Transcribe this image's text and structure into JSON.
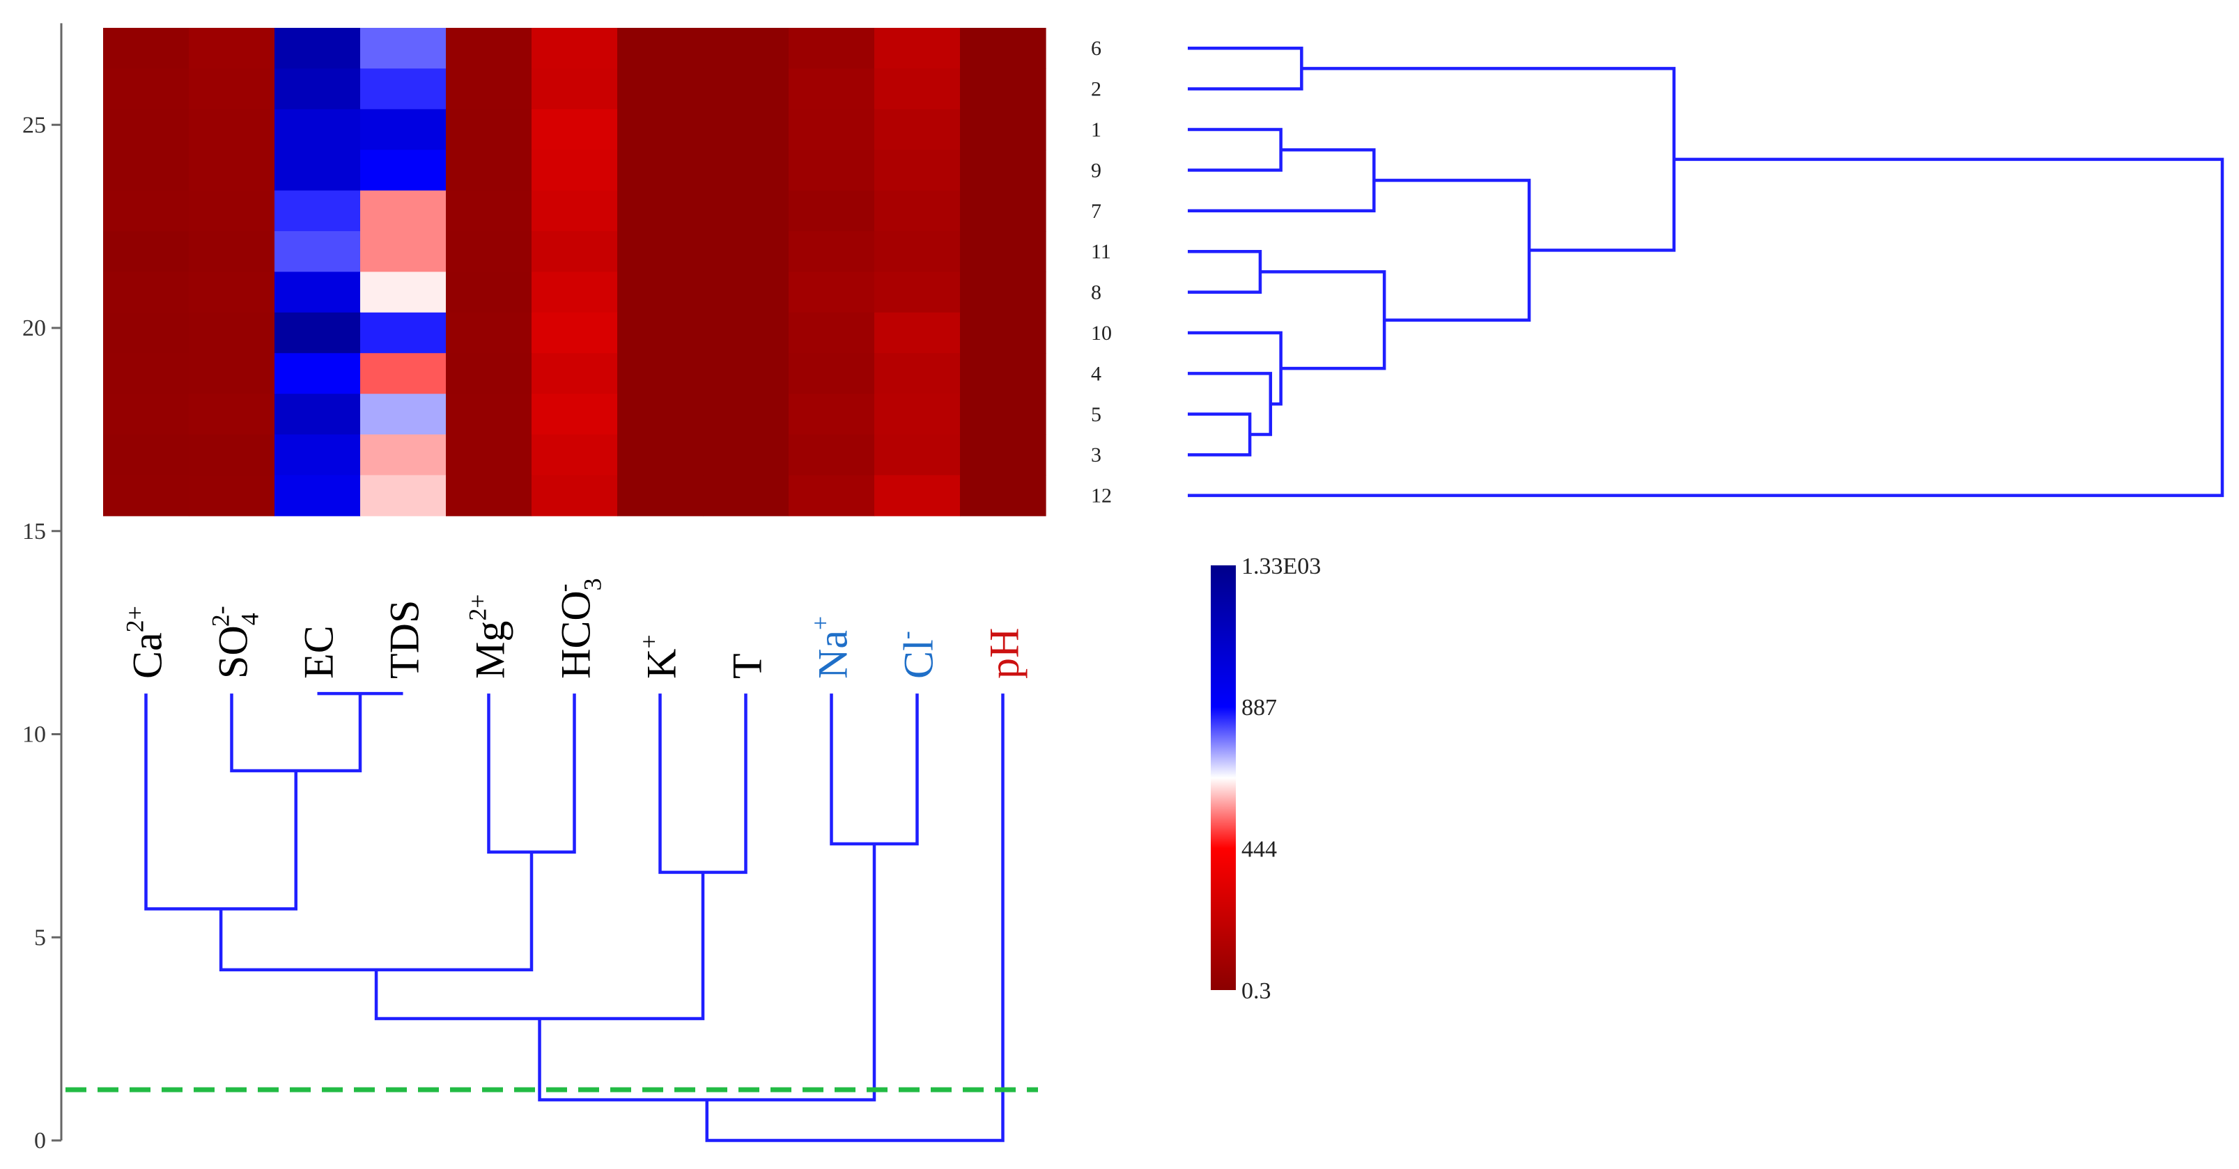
{
  "chart_data": {
    "type": "heatmap",
    "title": "",
    "xlabel": "",
    "ylabel": "",
    "heatmap": {
      "columns": [
        {
          "id": "Ca",
          "base": "Ca",
          "sup": "2+",
          "sub": "",
          "color": "#000000"
        },
        {
          "id": "SO4",
          "base": "SO",
          "sub": "4",
          "sup": "2-",
          "color": "#000000"
        },
        {
          "id": "EC",
          "base": "EC",
          "sub": "",
          "sup": "",
          "color": "#000000"
        },
        {
          "id": "TDS",
          "base": "TDS",
          "sub": "",
          "sup": "",
          "color": "#000000"
        },
        {
          "id": "Mg",
          "base": "Mg",
          "sup": "2+",
          "sub": "",
          "color": "#000000"
        },
        {
          "id": "HCO3",
          "base": "HCO",
          "sub": "3",
          "sup": "-",
          "color": "#000000"
        },
        {
          "id": "K",
          "base": "K",
          "sup": "+",
          "sub": "",
          "color": "#000000"
        },
        {
          "id": "T",
          "base": "T",
          "sub": "",
          "sup": "",
          "color": "#000000"
        },
        {
          "id": "Na",
          "base": "Na",
          "sup": "+",
          "sub": "",
          "color": "#1f6fc8"
        },
        {
          "id": "Cl",
          "base": "Cl",
          "sup": "-",
          "sub": "",
          "color": "#1f6fc8"
        },
        {
          "id": "pH",
          "base": "pH",
          "sub": "",
          "sup": "",
          "color": "#cc1111"
        }
      ],
      "rows": [
        "6",
        "2",
        "1",
        "9",
        "7",
        "11",
        "8",
        "10",
        "4",
        "5",
        "3",
        "12"
      ],
      "values": [
        [
          30,
          70,
          1200,
          800,
          40,
          250,
          10,
          10,
          60,
          200,
          5
        ],
        [
          40,
          60,
          1150,
          850,
          40,
          240,
          10,
          10,
          80,
          180,
          5
        ],
        [
          35,
          55,
          1050,
          1000,
          35,
          290,
          10,
          10,
          75,
          150,
          5
        ],
        [
          30,
          50,
          1050,
          900,
          35,
          280,
          10,
          10,
          70,
          130,
          5
        ],
        [
          40,
          45,
          850,
          560,
          40,
          260,
          10,
          10,
          50,
          110,
          5
        ],
        [
          25,
          40,
          820,
          560,
          35,
          230,
          10,
          10,
          70,
          100,
          5
        ],
        [
          35,
          45,
          1000,
          650,
          30,
          270,
          10,
          10,
          90,
          120,
          5
        ],
        [
          30,
          40,
          1250,
          860,
          40,
          300,
          10,
          10,
          70,
          190,
          5
        ],
        [
          35,
          40,
          900,
          520,
          35,
          260,
          10,
          10,
          60,
          160,
          5
        ],
        [
          40,
          50,
          1100,
          740,
          40,
          290,
          10,
          10,
          80,
          170,
          5
        ],
        [
          30,
          35,
          1000,
          590,
          40,
          260,
          10,
          10,
          65,
          160,
          5
        ],
        [
          35,
          40,
          960,
          620,
          40,
          240,
          10,
          10,
          90,
          230,
          5
        ]
      ],
      "colorbar": {
        "min": 0.3,
        "max": 1330,
        "tick_values": [
          1330,
          887,
          444,
          0.3
        ],
        "tick_labels": [
          "1.33E03",
          "887",
          "444",
          "0.3"
        ],
        "stops": [
          {
            "value": 0.3,
            "color": "#8b0000"
          },
          {
            "value": 444,
            "color": "#ff0000"
          },
          {
            "value": 665,
            "color": "#ffffff"
          },
          {
            "value": 887,
            "color": "#0000ff"
          },
          {
            "value": 1330,
            "color": "#00008b"
          }
        ]
      }
    },
    "variable_dendrogram": {
      "axis": {
        "ylim": [
          0,
          27.5
        ],
        "ticks": [
          0,
          5,
          10,
          15,
          20,
          25
        ]
      },
      "leaf_top": 11,
      "merges": [
        {
          "a": "EC",
          "b": "TDS",
          "h": 11
        },
        {
          "a": "SO4",
          "b": "m1",
          "h": 9.1
        },
        {
          "a": "Ca",
          "b": "m2",
          "h": 5.7
        },
        {
          "a": "Mg",
          "b": "HCO3",
          "h": 7.1
        },
        {
          "a": "m3",
          "b": "m4",
          "h": 4.2
        },
        {
          "a": "K",
          "b": "T",
          "h": 6.6
        },
        {
          "a": "m5",
          "b": "m6",
          "h": 3.0
        },
        {
          "a": "Na",
          "b": "Cl",
          "h": 7.3
        },
        {
          "a": "m7",
          "b": "m8",
          "h": 1.0
        },
        {
          "a": "m9",
          "b": "pH",
          "h": 0.0
        }
      ],
      "cut_height": 1.25,
      "cut_color": "#22bb44",
      "link_color": "#1f1fff"
    },
    "sample_dendrogram": {
      "leaves": [
        "6",
        "2",
        "1",
        "9",
        "7",
        "11",
        "8",
        "10",
        "4",
        "5",
        "3",
        "12"
      ],
      "merges": [
        {
          "a": "6",
          "b": "2",
          "h": 0.11
        },
        {
          "a": "1",
          "b": "9",
          "h": 0.09
        },
        {
          "a": "s2",
          "b": "7",
          "h": 0.18
        },
        {
          "a": "11",
          "b": "8",
          "h": 0.07
        },
        {
          "a": "5",
          "b": "3",
          "h": 0.06
        },
        {
          "a": "4",
          "b": "s5",
          "h": 0.08
        },
        {
          "a": "10",
          "b": "s6",
          "h": 0.09
        },
        {
          "a": "s4",
          "b": "s7",
          "h": 0.19
        },
        {
          "a": "s3",
          "b": "s8",
          "h": 0.33
        },
        {
          "a": "s1",
          "b": "s9",
          "h": 0.47
        },
        {
          "a": "s10",
          "b": "12",
          "h": 1.0
        }
      ],
      "link_color": "#1f1fff"
    }
  }
}
